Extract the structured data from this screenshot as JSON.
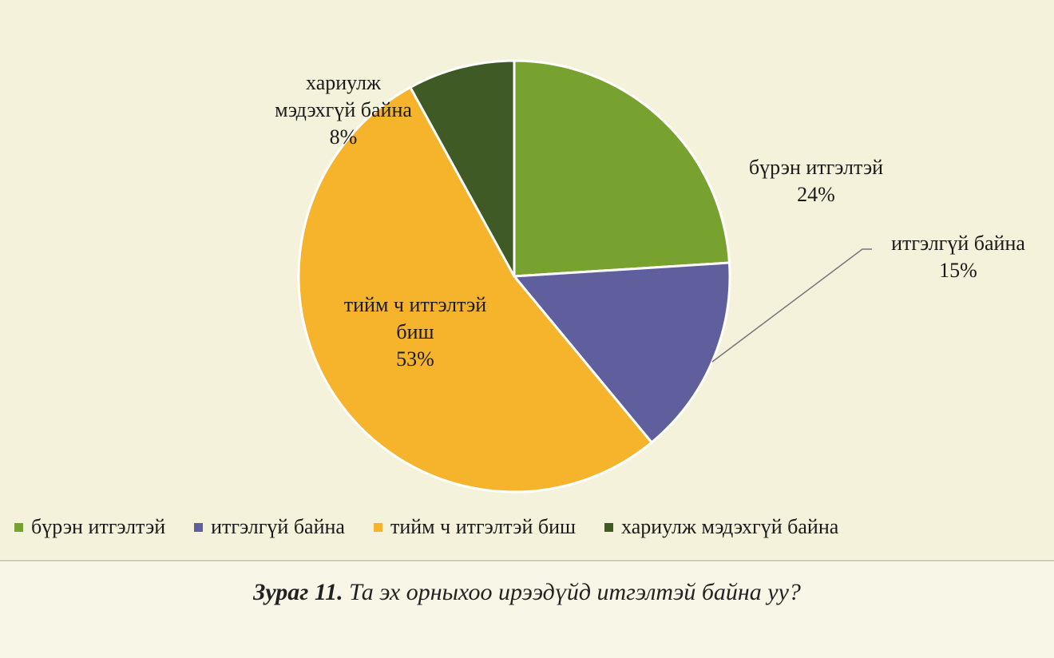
{
  "chart_data": {
    "type": "pie",
    "title": "",
    "slices": [
      {
        "label": "бүрэн итгэлтэй",
        "value": 24,
        "pct_text": "24%",
        "color": "#78a22f"
      },
      {
        "label": "итгэлгүй байна",
        "value": 15,
        "pct_text": "15%",
        "color": "#5f5f9e"
      },
      {
        "label": "тийм ч итгэлтэй биш",
        "value": 53,
        "pct_text": "53%",
        "color": "#f6b42c"
      },
      {
        "label": "хариулж мэдэхгүй байна",
        "value": 8,
        "pct_text": "8%",
        "color": "#3f5a24"
      }
    ],
    "slice_label_lines": [
      [
        "бүрэн итгэлтэй",
        "24%"
      ],
      [
        "итгэлгүй байна",
        "15%"
      ],
      [
        "тийм ч итгэлтэй",
        "биш",
        "53%"
      ],
      [
        "хариулж",
        "мэдэхгүй байна",
        "8%"
      ]
    ],
    "legend": {
      "position": "bottom",
      "entries": [
        "бүрэн итгэлтэй",
        "итгэлгүй байна",
        "тийм ч итгэлтэй биш",
        "хариулж мэдэхгүй байна"
      ]
    }
  },
  "caption": {
    "number": "Зураг 11.",
    "text": "Та эх орныхоо ирээдүйд итгэлтэй байна уу?"
  }
}
